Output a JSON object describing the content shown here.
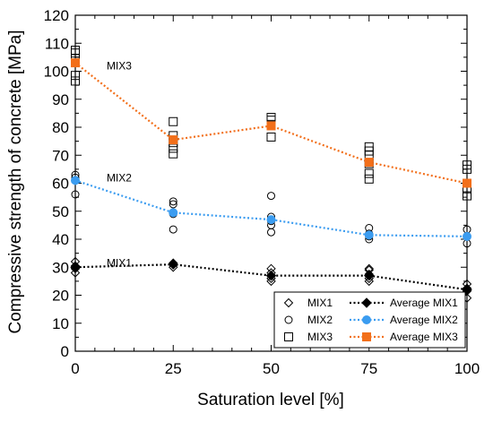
{
  "chart_data": {
    "type": "scatter",
    "xlabel": "Saturation level [%]",
    "ylabel": "Compressive strength of concrete [MPa]",
    "xlim": [
      0,
      100
    ],
    "ylim": [
      0,
      120
    ],
    "x_ticks": [
      0,
      25,
      50,
      75,
      100
    ],
    "y_ticks": [
      0,
      10,
      20,
      30,
      40,
      50,
      60,
      70,
      80,
      90,
      100,
      110,
      120
    ],
    "grid": false,
    "legend_position": "bottom-right",
    "annotations": [
      {
        "text": "MIX3",
        "x": 8,
        "y": 102
      },
      {
        "text": "MIX2",
        "x": 8,
        "y": 62
      },
      {
        "text": "MIX1",
        "x": 8,
        "y": 31.5
      }
    ],
    "individual_series": [
      {
        "name": "MIX1",
        "marker": "diamond",
        "points": [
          [
            0,
            28
          ],
          [
            0,
            29.5
          ],
          [
            0,
            30.5
          ],
          [
            0,
            32
          ],
          [
            25,
            30
          ],
          [
            25,
            31
          ],
          [
            25,
            31.5
          ],
          [
            50,
            25
          ],
          [
            50,
            26
          ],
          [
            50,
            27
          ],
          [
            50,
            28
          ],
          [
            50,
            29.5
          ],
          [
            75,
            25
          ],
          [
            75,
            26
          ],
          [
            75,
            27.5
          ],
          [
            75,
            29
          ],
          [
            75,
            29.5
          ],
          [
            100,
            19
          ],
          [
            100,
            21.5
          ],
          [
            100,
            22.5
          ],
          [
            100,
            24
          ]
        ]
      },
      {
        "name": "MIX2",
        "marker": "circle",
        "points": [
          [
            0,
            56
          ],
          [
            0,
            62
          ],
          [
            0,
            63
          ],
          [
            25,
            43.5
          ],
          [
            25,
            49
          ],
          [
            25,
            52.5
          ],
          [
            25,
            53.5
          ],
          [
            50,
            42.5
          ],
          [
            50,
            45
          ],
          [
            50,
            46.5
          ],
          [
            50,
            48
          ],
          [
            50,
            55.5
          ],
          [
            75,
            40
          ],
          [
            75,
            41
          ],
          [
            75,
            42
          ],
          [
            75,
            44
          ],
          [
            100,
            38.5
          ],
          [
            100,
            41
          ],
          [
            100,
            43.5
          ]
        ]
      },
      {
        "name": "MIX3",
        "marker": "square",
        "points": [
          [
            0,
            96.5
          ],
          [
            0,
            98.5
          ],
          [
            0,
            104.5
          ],
          [
            0,
            106.5
          ],
          [
            0,
            107.5
          ],
          [
            25,
            70.5
          ],
          [
            25,
            72.5
          ],
          [
            25,
            74.5
          ],
          [
            25,
            77
          ],
          [
            25,
            82
          ],
          [
            50,
            76.5
          ],
          [
            50,
            81
          ],
          [
            50,
            82.5
          ],
          [
            50,
            83.5
          ],
          [
            75,
            61.5
          ],
          [
            75,
            63.5
          ],
          [
            75,
            67
          ],
          [
            75,
            70
          ],
          [
            75,
            71.5
          ],
          [
            75,
            73
          ],
          [
            100,
            55.5
          ],
          [
            100,
            58
          ],
          [
            100,
            65
          ],
          [
            100,
            66.5
          ]
        ]
      }
    ],
    "average_series": [
      {
        "name": "Average MIX1",
        "color": "#000000",
        "marker": "diamond",
        "x": [
          0,
          25,
          50,
          75,
          100
        ],
        "y": [
          30,
          31,
          27,
          27,
          22
        ]
      },
      {
        "name": "Average MIX2",
        "color": "#3b9cf0",
        "marker": "circle",
        "x": [
          0,
          25,
          50,
          75,
          100
        ],
        "y": [
          61,
          49.5,
          47,
          41.5,
          41
        ]
      },
      {
        "name": "Average MIX3",
        "color": "#f26f1a",
        "marker": "square",
        "x": [
          0,
          25,
          50,
          75,
          100
        ],
        "y": [
          103,
          75.5,
          80.5,
          67.5,
          60
        ]
      }
    ]
  }
}
